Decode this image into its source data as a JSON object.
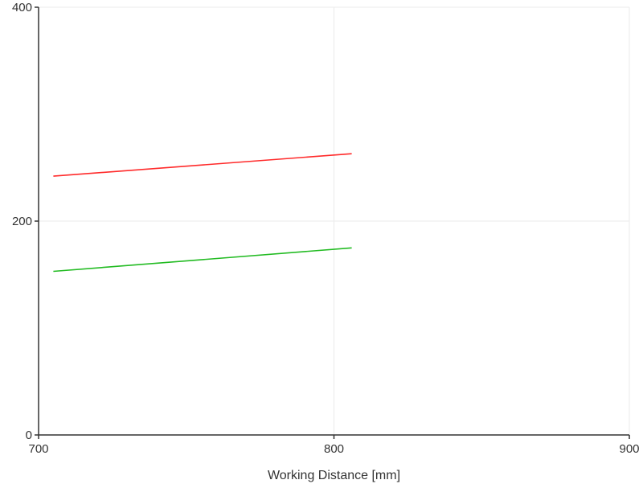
{
  "chart_data": {
    "type": "line",
    "title": "",
    "xlabel": "Working Distance [mm]",
    "ylabel": "",
    "xlim": [
      700,
      900
    ],
    "ylim": [
      0,
      400
    ],
    "x_ticks": [
      700,
      800,
      900
    ],
    "y_ticks": [
      0,
      200,
      400
    ],
    "x_tick_labels": [
      "700",
      "800",
      "900"
    ],
    "y_tick_labels": [
      "0",
      "200",
      "400"
    ],
    "grid": true,
    "series": [
      {
        "color": "#ff2a2a",
        "points": [
          [
            705,
            242
          ],
          [
            806,
            263
          ]
        ]
      },
      {
        "color": "#22bb22",
        "points": [
          [
            705,
            153
          ],
          [
            806,
            175
          ]
        ]
      }
    ]
  },
  "colors": {
    "grid": "#ebebeb",
    "axis": "#333333"
  }
}
